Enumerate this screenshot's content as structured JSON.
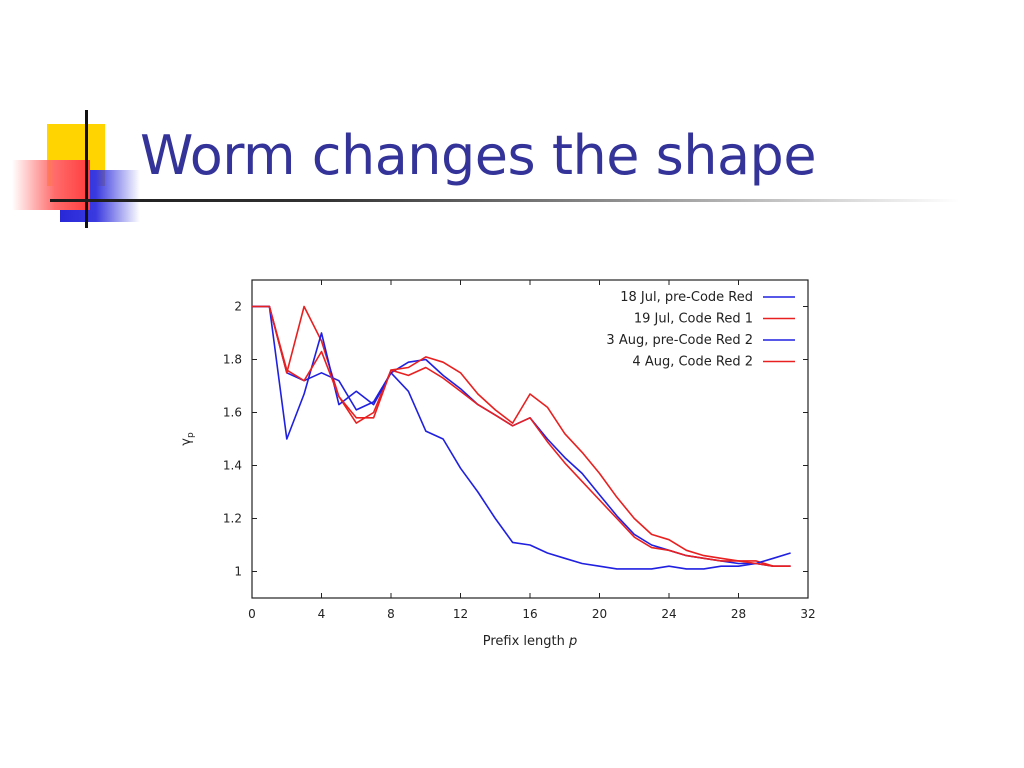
{
  "slide": {
    "title": "Worm changes the shape"
  },
  "colors": {
    "title": "#333399",
    "blue_series": "#2020e0",
    "red_series": "#e82020",
    "accent_yellow": "#ffd400",
    "accent_red": "#ff3c3c",
    "accent_blue": "#2828d8"
  },
  "chart_data": {
    "type": "line",
    "title": "",
    "xlabel": "Prefix length p",
    "ylabel": "γp",
    "xlim": [
      0,
      32
    ],
    "ylim": [
      0.9,
      2.1
    ],
    "x_ticks": [
      "0",
      "4",
      "8",
      "12",
      "16",
      "20",
      "24",
      "28",
      "32"
    ],
    "y_ticks": [
      "1",
      "1.2",
      "1.4",
      "1.6",
      "1.8",
      "2"
    ],
    "grid": false,
    "legend_position": "top-right",
    "series": [
      {
        "name": "18 Jul, pre-Code Red",
        "color": "blue",
        "x": [
          0,
          1,
          2,
          3,
          4,
          5,
          6,
          7,
          8,
          9,
          10,
          11,
          12,
          13,
          14,
          15,
          16,
          17,
          18,
          19,
          20,
          21,
          22,
          23,
          24,
          25,
          26,
          27,
          28,
          29,
          30,
          31
        ],
        "y": [
          2.0,
          2.0,
          1.75,
          1.72,
          1.75,
          1.72,
          1.61,
          1.64,
          1.75,
          1.79,
          1.8,
          1.74,
          1.69,
          1.63,
          1.59,
          1.55,
          1.58,
          1.5,
          1.43,
          1.37,
          1.29,
          1.21,
          1.14,
          1.1,
          1.08,
          1.06,
          1.05,
          1.04,
          1.03,
          1.03,
          1.02,
          1.02
        ]
      },
      {
        "name": "19 Jul, Code Red 1",
        "color": "red",
        "x": [
          0,
          1,
          2,
          3,
          4,
          5,
          6,
          7,
          8,
          9,
          10,
          11,
          12,
          13,
          14,
          15,
          16,
          17,
          18,
          19,
          20,
          21,
          22,
          23,
          24,
          25,
          26,
          27,
          28,
          29,
          30,
          31
        ],
        "y": [
          2.0,
          2.0,
          1.75,
          2.0,
          1.87,
          1.66,
          1.56,
          1.6,
          1.76,
          1.77,
          1.81,
          1.79,
          1.75,
          1.67,
          1.61,
          1.56,
          1.67,
          1.62,
          1.52,
          1.45,
          1.37,
          1.28,
          1.2,
          1.14,
          1.12,
          1.08,
          1.06,
          1.05,
          1.04,
          1.04,
          1.02,
          1.02
        ]
      },
      {
        "name": "3 Aug, pre-Code Red 2",
        "color": "blue",
        "x": [
          0,
          1,
          2,
          3,
          4,
          5,
          6,
          7,
          8,
          9,
          10,
          11,
          12,
          13,
          14,
          15,
          16,
          17,
          18,
          19,
          20,
          21,
          22,
          23,
          24,
          25,
          26,
          27,
          28,
          29,
          30,
          31
        ],
        "y": [
          2.0,
          2.0,
          1.5,
          1.67,
          1.9,
          1.63,
          1.68,
          1.63,
          1.75,
          1.68,
          1.53,
          1.5,
          1.39,
          1.3,
          1.2,
          1.11,
          1.1,
          1.07,
          1.05,
          1.03,
          1.02,
          1.01,
          1.01,
          1.01,
          1.02,
          1.01,
          1.01,
          1.02,
          1.02,
          1.03,
          1.05,
          1.07
        ]
      },
      {
        "name": "4 Aug, Code Red 2",
        "color": "red",
        "x": [
          0,
          1,
          2,
          3,
          4,
          5,
          6,
          7,
          8,
          9,
          10,
          11,
          12,
          13,
          14,
          15,
          16,
          17,
          18,
          19,
          20,
          21,
          22,
          23,
          24,
          25,
          26,
          27,
          28,
          29,
          30,
          31
        ],
        "y": [
          2.0,
          2.0,
          1.76,
          1.72,
          1.83,
          1.66,
          1.58,
          1.58,
          1.76,
          1.74,
          1.77,
          1.73,
          1.68,
          1.63,
          1.59,
          1.55,
          1.58,
          1.49,
          1.41,
          1.34,
          1.27,
          1.2,
          1.13,
          1.09,
          1.08,
          1.06,
          1.05,
          1.04,
          1.04,
          1.03,
          1.02,
          1.02
        ]
      }
    ]
  }
}
